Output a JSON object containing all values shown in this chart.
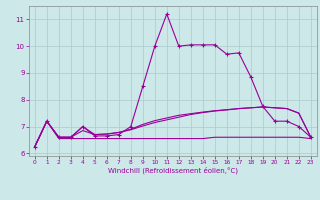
{
  "xlabel": "Windchill (Refroidissement éolien,°C)",
  "bg_color": "#cce8e8",
  "grid_color": "#aacccc",
  "line_color": "#990099",
  "xlim": [
    -0.5,
    23.5
  ],
  "ylim": [
    5.9,
    11.5
  ],
  "yticks": [
    6,
    7,
    8,
    9,
    10,
    11
  ],
  "xticks": [
    0,
    1,
    2,
    3,
    4,
    5,
    6,
    7,
    8,
    9,
    10,
    11,
    12,
    13,
    14,
    15,
    16,
    17,
    18,
    19,
    20,
    21,
    22,
    23
  ],
  "series": {
    "line1_x": [
      0,
      1,
      2,
      3,
      4,
      5,
      6,
      7,
      8,
      9,
      10,
      11,
      12,
      13,
      14,
      15,
      16,
      17,
      18,
      19,
      20,
      21,
      22,
      23
    ],
    "line1_y": [
      6.25,
      7.2,
      6.6,
      6.6,
      7.0,
      6.65,
      6.65,
      6.7,
      7.0,
      8.5,
      10.0,
      11.2,
      10.0,
      10.05,
      10.05,
      10.05,
      9.7,
      9.75,
      8.85,
      7.75,
      7.2,
      7.2,
      7.0,
      6.6
    ],
    "line2_x": [
      0,
      1,
      2,
      3,
      4,
      5,
      6,
      7,
      8,
      9,
      10,
      11,
      12,
      13,
      14,
      15,
      16,
      17,
      18,
      19,
      20,
      21,
      22,
      23
    ],
    "line2_y": [
      6.25,
      7.2,
      6.55,
      6.55,
      6.55,
      6.55,
      6.55,
      6.55,
      6.55,
      6.55,
      6.55,
      6.55,
      6.55,
      6.55,
      6.55,
      6.6,
      6.6,
      6.6,
      6.6,
      6.6,
      6.6,
      6.6,
      6.6,
      6.55
    ],
    "line3_x": [
      0,
      1,
      2,
      3,
      4,
      5,
      6,
      7,
      8,
      9,
      10,
      11,
      12,
      13,
      14,
      15,
      16,
      17,
      18,
      19,
      20,
      21,
      22,
      23
    ],
    "line3_y": [
      6.25,
      7.2,
      6.6,
      6.6,
      6.85,
      6.7,
      6.72,
      6.78,
      6.88,
      7.02,
      7.15,
      7.25,
      7.35,
      7.45,
      7.52,
      7.58,
      7.62,
      7.67,
      7.7,
      7.73,
      7.7,
      7.67,
      7.5,
      6.6
    ],
    "line4_x": [
      0,
      1,
      2,
      3,
      4,
      5,
      6,
      7,
      8,
      9,
      10,
      11,
      12,
      13,
      14,
      15,
      16,
      17,
      18,
      19,
      20,
      21,
      22,
      23
    ],
    "line4_y": [
      6.25,
      7.2,
      6.6,
      6.6,
      7.0,
      6.7,
      6.72,
      6.78,
      6.9,
      7.08,
      7.22,
      7.32,
      7.42,
      7.48,
      7.54,
      7.59,
      7.63,
      7.67,
      7.7,
      7.73,
      7.7,
      7.67,
      7.5,
      6.6
    ]
  }
}
